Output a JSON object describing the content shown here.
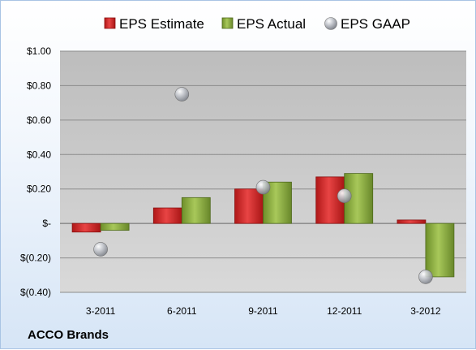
{
  "chart_data": {
    "type": "bar",
    "title": "",
    "xlabel": "",
    "ylabel": "",
    "categories": [
      "3-2011",
      "6-2011",
      "9-2011",
      "12-2011",
      "3-2012"
    ],
    "series": [
      {
        "name": "EPS Estimate",
        "kind": "bar",
        "color": "#d42a2a",
        "values": [
          -0.05,
          0.09,
          0.2,
          0.27,
          0.02
        ]
      },
      {
        "name": "EPS Actual",
        "kind": "bar",
        "color": "#8fb33f",
        "values": [
          -0.04,
          0.15,
          0.24,
          0.29,
          -0.31
        ]
      },
      {
        "name": "EPS GAAP",
        "kind": "scatter",
        "color": "#b8bcc4",
        "values": [
          -0.15,
          0.75,
          0.21,
          0.16,
          -0.31
        ]
      }
    ],
    "ylim": [
      -0.4,
      1.0
    ],
    "yticks": [
      {
        "value": 1.0,
        "label": "$1.00"
      },
      {
        "value": 0.8,
        "label": "$0.80"
      },
      {
        "value": 0.6,
        "label": "$0.60"
      },
      {
        "value": 0.4,
        "label": "$0.40"
      },
      {
        "value": 0.2,
        "label": "$0.20"
      },
      {
        "value": 0.0,
        "label": "$-"
      },
      {
        "value": -0.2,
        "label": "$(0.20)"
      },
      {
        "value": -0.4,
        "label": "$(0.40)"
      }
    ],
    "grid": true,
    "legend_position": "top"
  },
  "company_label": "ACCO Brands"
}
